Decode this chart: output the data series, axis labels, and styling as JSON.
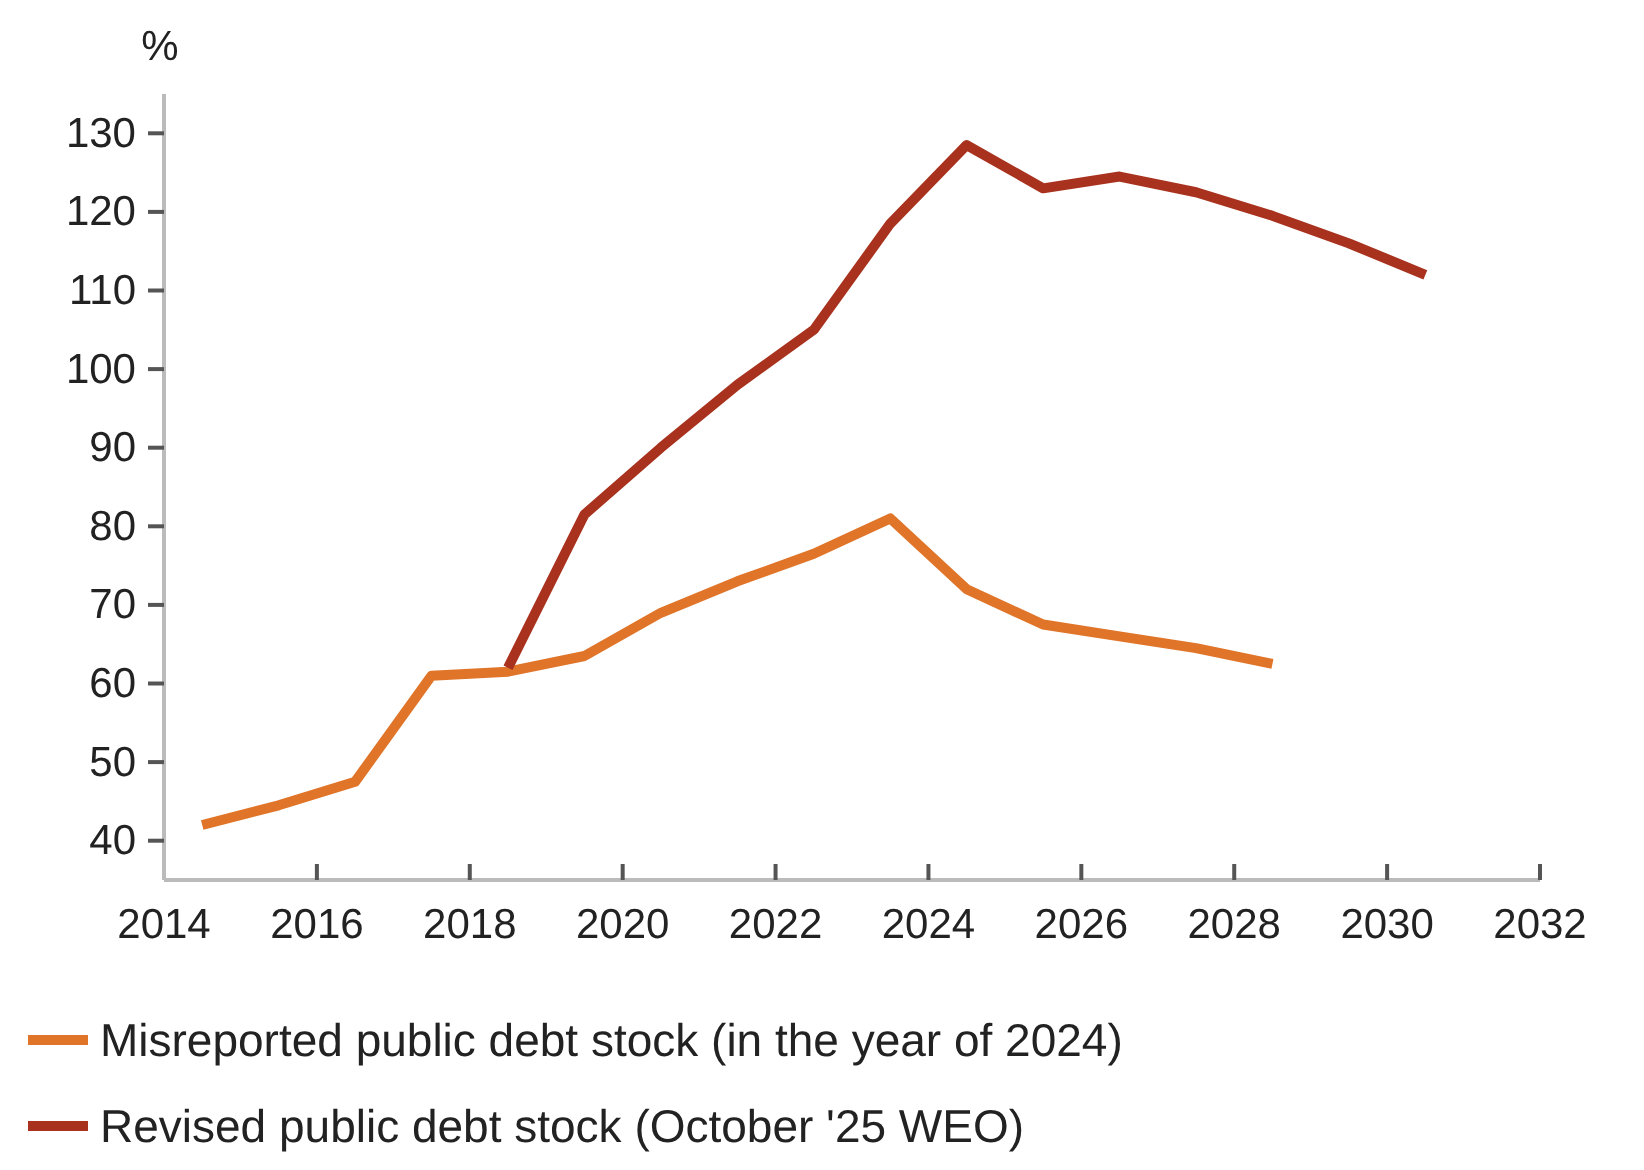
{
  "chart_data": {
    "type": "line",
    "ylabel": "%",
    "x": [
      2014.5,
      2015.5,
      2016.5,
      2017.5,
      2018.5,
      2019.5,
      2020.5,
      2021.5,
      2022.5,
      2023.5,
      2024.5,
      2025.5,
      2026.5,
      2027.5,
      2028.5,
      2029.5,
      2030.5
    ],
    "series": [
      {
        "name": "Misreported public debt stock (in the year of 2024)",
        "color": "#e07428",
        "values": [
          42,
          44.5,
          47.5,
          61,
          61.5,
          63.5,
          69,
          73,
          76.5,
          81,
          72,
          67.5,
          66,
          64.5,
          62.5,
          null,
          null
        ]
      },
      {
        "name": "Revised public debt stock (October '25 WEO)",
        "color": "#a8321e",
        "values": [
          null,
          null,
          null,
          null,
          62,
          81.5,
          90,
          98,
          105,
          118.5,
          128.5,
          123,
          124.5,
          122.5,
          119.5,
          116,
          112
        ]
      }
    ],
    "xlim": [
      2014,
      2032
    ],
    "xticks": [
      2014,
      2016,
      2018,
      2020,
      2022,
      2024,
      2026,
      2028,
      2030,
      2032
    ],
    "ylim": [
      35,
      135
    ],
    "yticks": [
      40,
      50,
      60,
      70,
      80,
      90,
      100,
      110,
      120,
      130
    ],
    "grid": false,
    "legend": "bottom",
    "marker": "none",
    "line_style": "solid"
  }
}
